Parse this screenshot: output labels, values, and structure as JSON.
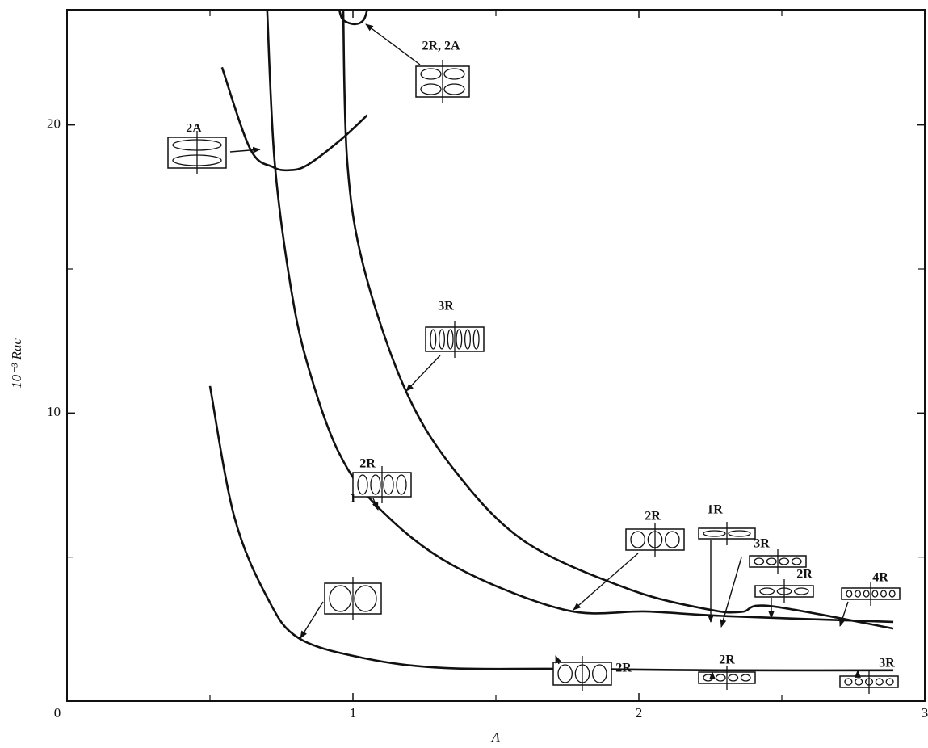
{
  "chart_data": {
    "type": "line",
    "xlabel": "Λ",
    "ylabel": "10⁻³ Rac",
    "xlim": [
      0,
      3
    ],
    "ylim": [
      0,
      24
    ],
    "xticks": [
      0,
      1,
      2,
      3
    ],
    "yticks": [
      10,
      20
    ],
    "minor_xticks": [
      0.5,
      1.5,
      2.5
    ],
    "minor_yticks": [
      5,
      15
    ],
    "color": "#111",
    "series": [
      {
        "x": [
          0.5,
          0.585,
          0.7,
          0.81,
          1.04,
          1.32,
          1.74,
          2.31,
          2.89
        ],
        "values": [
          10.94,
          6.4,
          3.6,
          2.19,
          1.49,
          1.15,
          1.12,
          1.07,
          1.07
        ]
      },
      {
        "x": [
          0.7,
          0.726,
          0.78,
          0.84,
          0.95,
          1.093,
          1.35,
          1.74,
          2.03,
          2.31,
          2.89
        ],
        "values": [
          24,
          18.74,
          14.53,
          11.73,
          8.64,
          6.68,
          4.71,
          3.17,
          3.11,
          2.95,
          2.75
        ]
      },
      {
        "x": [
          0.966,
          0.98,
          1.037,
          1.18,
          1.35,
          1.6,
          1.97,
          2.25,
          2.36,
          2.46,
          2.89
        ],
        "values": [
          24,
          18.74,
          15.09,
          10.88,
          8.08,
          5.55,
          3.87,
          3.17,
          3.1,
          3.3,
          2.52
        ]
      },
      {
        "x": [
          0.542,
          0.641,
          0.72,
          0.777,
          0.839,
          0.952,
          1.05
        ],
        "values": [
          22.0,
          19.16,
          18.54,
          18.43,
          18.6,
          19.44,
          20.34
        ]
      },
      {
        "x": [
          0.952,
          0.966,
          1.008,
          1.037,
          1.05
        ],
        "values": [
          24,
          23.64,
          23.5,
          23.64,
          24
        ]
      }
    ],
    "annotations": [
      "2R, 2A",
      "2A",
      "3R",
      "2R",
      "1",
      "2R",
      "2R",
      "1R",
      "3R",
      "2R",
      "4R",
      "2R",
      "3R"
    ]
  }
}
